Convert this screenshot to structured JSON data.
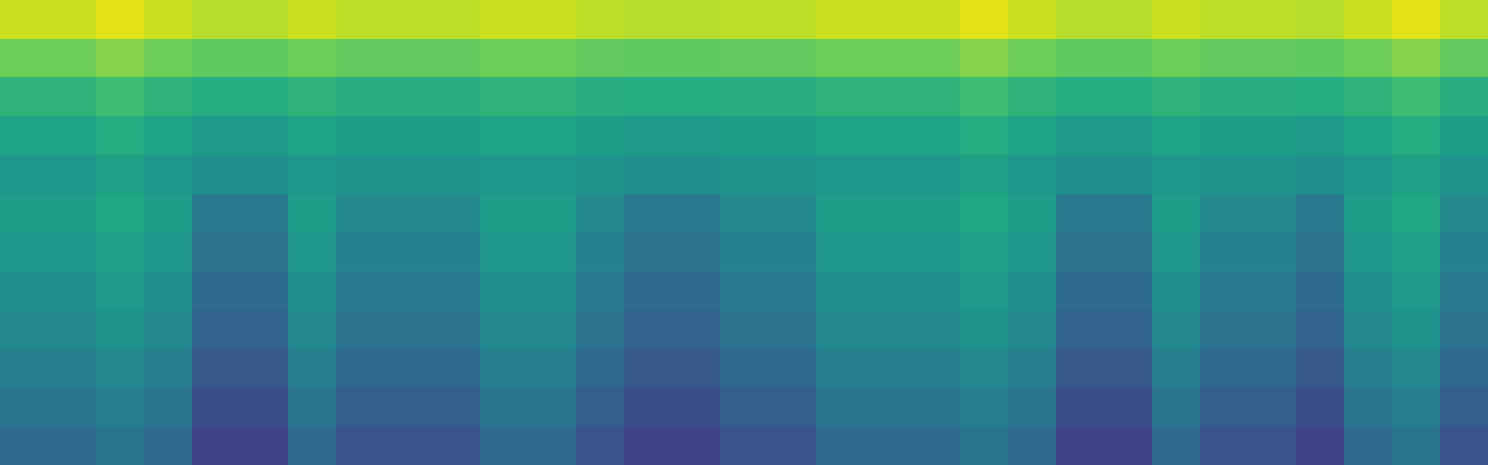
{
  "chart_data": {
    "type": "heatmap",
    "color": "viridis",
    "tick_labels": false,
    "value_range": [
      0,
      1
    ],
    "cells": [
      [
        0.92,
        0.92,
        0.96,
        0.92,
        0.89,
        0.89,
        0.92,
        0.9,
        0.9,
        0.9,
        0.92,
        0.92,
        0.9,
        0.89,
        0.89,
        0.9,
        0.9,
        0.92,
        0.92,
        0.92,
        0.96,
        0.92,
        0.89,
        0.89,
        0.92,
        0.9,
        0.9,
        0.89,
        0.92,
        0.96,
        0.9
      ],
      [
        0.78,
        0.78,
        0.82,
        0.78,
        0.75,
        0.75,
        0.78,
        0.76,
        0.76,
        0.76,
        0.78,
        0.78,
        0.76,
        0.75,
        0.75,
        0.76,
        0.76,
        0.78,
        0.78,
        0.78,
        0.82,
        0.78,
        0.75,
        0.75,
        0.78,
        0.76,
        0.76,
        0.75,
        0.78,
        0.82,
        0.76
      ],
      [
        0.65,
        0.65,
        0.69,
        0.65,
        0.62,
        0.62,
        0.65,
        0.63,
        0.63,
        0.63,
        0.65,
        0.65,
        0.63,
        0.62,
        0.62,
        0.63,
        0.63,
        0.65,
        0.65,
        0.65,
        0.69,
        0.65,
        0.62,
        0.62,
        0.65,
        0.63,
        0.63,
        0.62,
        0.65,
        0.69,
        0.63
      ],
      [
        0.58,
        0.58,
        0.62,
        0.58,
        0.55,
        0.55,
        0.58,
        0.56,
        0.56,
        0.56,
        0.58,
        0.58,
        0.56,
        0.55,
        0.55,
        0.56,
        0.56,
        0.58,
        0.58,
        0.58,
        0.62,
        0.58,
        0.55,
        0.55,
        0.58,
        0.56,
        0.56,
        0.55,
        0.58,
        0.62,
        0.56
      ],
      [
        0.53,
        0.53,
        0.57,
        0.53,
        0.5,
        0.5,
        0.53,
        0.51,
        0.51,
        0.51,
        0.53,
        0.53,
        0.51,
        0.5,
        0.5,
        0.51,
        0.51,
        0.53,
        0.53,
        0.53,
        0.57,
        0.53,
        0.5,
        0.5,
        0.53,
        0.51,
        0.51,
        0.5,
        0.53,
        0.57,
        0.51
      ],
      [
        0.56,
        0.56,
        0.6,
        0.56,
        0.41,
        0.41,
        0.56,
        0.47,
        0.47,
        0.47,
        0.56,
        0.56,
        0.47,
        0.41,
        0.41,
        0.47,
        0.47,
        0.56,
        0.56,
        0.56,
        0.6,
        0.56,
        0.41,
        0.41,
        0.56,
        0.47,
        0.47,
        0.41,
        0.56,
        0.6,
        0.47
      ],
      [
        0.53,
        0.53,
        0.57,
        0.53,
        0.38,
        0.38,
        0.53,
        0.44,
        0.44,
        0.44,
        0.53,
        0.53,
        0.44,
        0.38,
        0.38,
        0.44,
        0.44,
        0.53,
        0.53,
        0.53,
        0.57,
        0.53,
        0.38,
        0.38,
        0.53,
        0.44,
        0.44,
        0.38,
        0.53,
        0.57,
        0.44
      ],
      [
        0.5,
        0.5,
        0.54,
        0.5,
        0.35,
        0.35,
        0.5,
        0.41,
        0.41,
        0.41,
        0.5,
        0.5,
        0.41,
        0.35,
        0.35,
        0.41,
        0.41,
        0.5,
        0.5,
        0.5,
        0.54,
        0.5,
        0.35,
        0.35,
        0.5,
        0.41,
        0.41,
        0.35,
        0.5,
        0.54,
        0.41
      ],
      [
        0.47,
        0.47,
        0.51,
        0.47,
        0.32,
        0.32,
        0.47,
        0.38,
        0.38,
        0.38,
        0.47,
        0.47,
        0.38,
        0.32,
        0.32,
        0.38,
        0.38,
        0.47,
        0.47,
        0.47,
        0.51,
        0.47,
        0.32,
        0.32,
        0.47,
        0.38,
        0.38,
        0.32,
        0.47,
        0.51,
        0.38
      ],
      [
        0.43,
        0.43,
        0.47,
        0.43,
        0.28,
        0.28,
        0.43,
        0.34,
        0.34,
        0.34,
        0.43,
        0.43,
        0.34,
        0.28,
        0.28,
        0.34,
        0.34,
        0.43,
        0.43,
        0.43,
        0.47,
        0.43,
        0.28,
        0.28,
        0.43,
        0.34,
        0.34,
        0.28,
        0.43,
        0.47,
        0.34
      ],
      [
        0.39,
        0.39,
        0.43,
        0.39,
        0.24,
        0.24,
        0.39,
        0.3,
        0.3,
        0.3,
        0.39,
        0.39,
        0.3,
        0.24,
        0.24,
        0.3,
        0.3,
        0.39,
        0.39,
        0.39,
        0.43,
        0.39,
        0.24,
        0.24,
        0.39,
        0.3,
        0.3,
        0.24,
        0.39,
        0.43,
        0.3
      ],
      [
        0.35,
        0.35,
        0.39,
        0.35,
        0.2,
        0.2,
        0.35,
        0.26,
        0.26,
        0.26,
        0.35,
        0.35,
        0.26,
        0.2,
        0.2,
        0.26,
        0.26,
        0.35,
        0.35,
        0.35,
        0.39,
        0.35,
        0.2,
        0.2,
        0.35,
        0.26,
        0.26,
        0.2,
        0.35,
        0.39,
        0.26
      ]
    ]
  }
}
